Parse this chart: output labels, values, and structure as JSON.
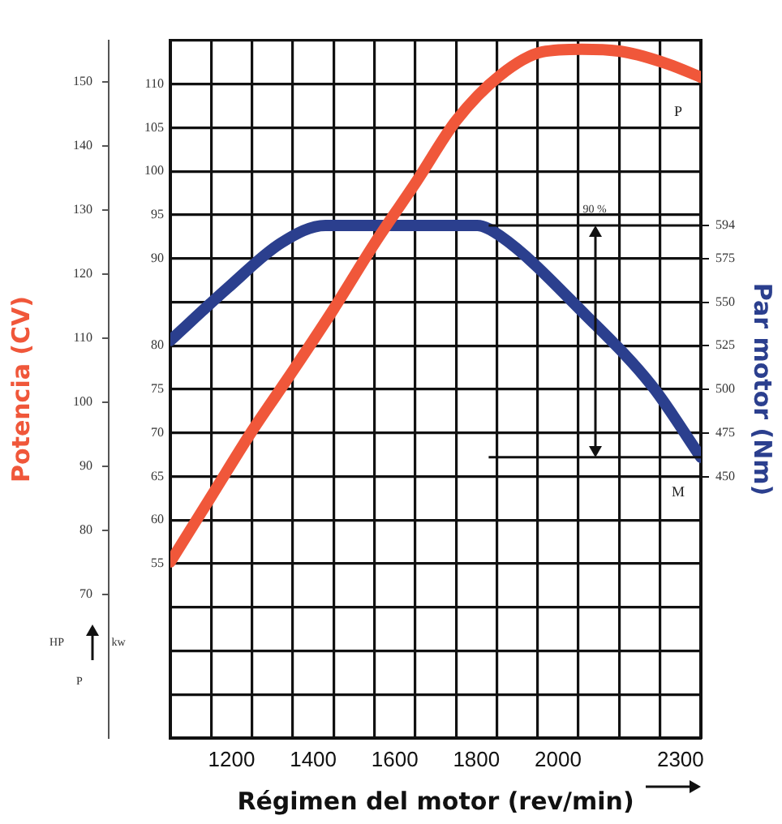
{
  "chart_data": {
    "type": "line",
    "xlabel": "Régimen del motor (rev/min)",
    "ylabel": "Potencia (CV)",
    "y2label": "Par motor (Nm)",
    "xlim": [
      1050,
      2350
    ],
    "xticks": [
      {
        "value": 1150,
        "label": null
      },
      1200,
      {
        "value": 1250,
        "label": null
      },
      {
        "value": 1350,
        "label": null
      },
      1400,
      {
        "value": 1450,
        "label": null
      },
      {
        "value": 1550,
        "label": null
      },
      1600,
      {
        "value": 1650,
        "label": null
      },
      {
        "value": 1750,
        "label": null
      },
      1800,
      {
        "value": 1850,
        "label": null
      },
      {
        "value": 1950,
        "label": null
      },
      2000,
      {
        "value": 2050,
        "label": null
      },
      {
        "value": 2150,
        "label": null
      },
      {
        "value": 2250,
        "label": null
      },
      2300
    ],
    "ylim": [
      35,
      115
    ],
    "yticks": [
      {
        "value": 40,
        "label": null
      },
      {
        "value": 45,
        "label": null
      },
      {
        "value": 50,
        "label": null
      },
      55,
      60,
      65,
      70,
      75,
      80,
      {
        "value": 85,
        "label": null
      },
      90,
      95,
      100,
      105,
      110,
      {
        "value": 115,
        "label": null
      }
    ],
    "y3lim": [
      47.6,
      156.4
    ],
    "y3ticks": [
      70,
      80,
      90,
      100,
      110,
      120,
      130,
      140,
      150
    ],
    "y2lim": [
      300,
      700
    ],
    "y2ticks": [
      450,
      475,
      500,
      525,
      550,
      575,
      594
    ],
    "grid": true,
    "legend": false,
    "marker": "none",
    "line_style": "solid",
    "series": [
      {
        "name": "P",
        "color": "#f0573a",
        "axis": "y",
        "x": [
          1050,
          1150,
          1250,
          1350,
          1450,
          1550,
          1654,
          1750,
          1858,
          1962,
          2058,
          2162,
          2270,
          2350
        ],
        "values": [
          55.2,
          62.7,
          70.2,
          77.1,
          84.2,
          91.7,
          98.9,
          105.8,
          111.0,
          113.7,
          114.0,
          113.7,
          112.3,
          110.8
        ]
      },
      {
        "name": "M",
        "color": "#2b3f8e",
        "axis": "y2",
        "x": [
          1050,
          1190,
          1322,
          1430,
          1802,
          1858,
          2070,
          2230,
          2350
        ],
        "values": [
          528,
          558,
          584,
          594,
          594,
          588,
          542,
          502,
          461
        ]
      }
    ],
    "ref_lines": [
      {
        "axis": "y2",
        "value": 594,
        "color": "#111111"
      },
      {
        "axis": "y2",
        "value": 461,
        "color": "#111111"
      }
    ],
    "annotations": [
      "90 %",
      "HP",
      "kw",
      "P"
    ]
  }
}
